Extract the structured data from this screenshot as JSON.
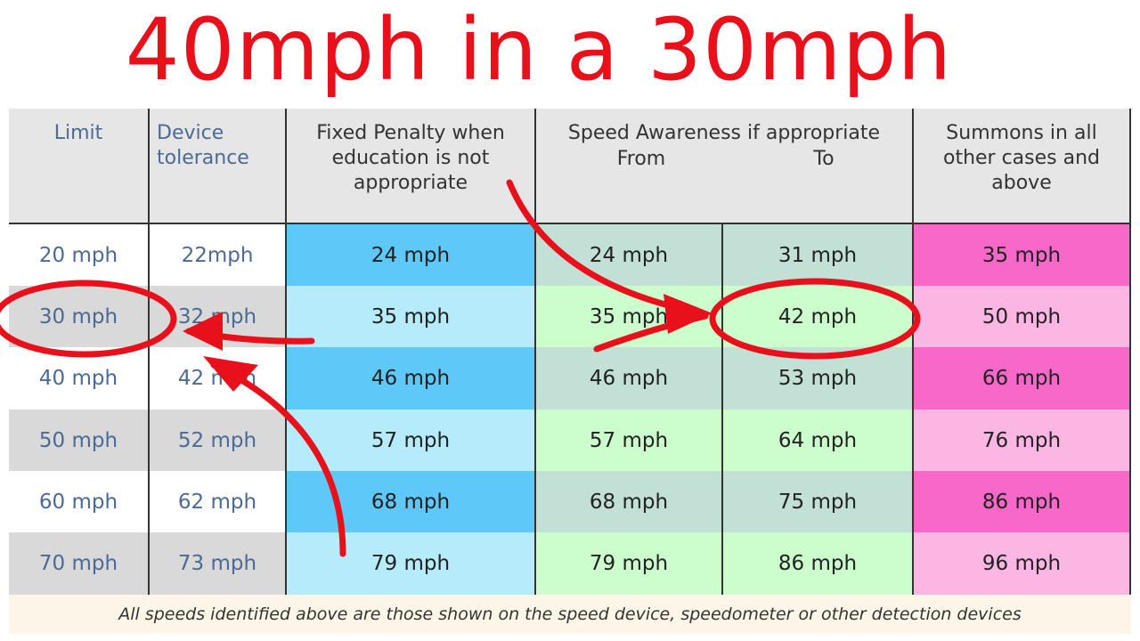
{
  "header": {
    "title": "40mph in a 30mph"
  },
  "table": {
    "columns": [
      "Limit",
      "Device tolerance",
      "Fixed Penalty when education is not appropriate",
      "Speed Awareness if appropriate",
      "Summons in all other cases and above"
    ],
    "subcolumns": [
      "From",
      "To"
    ],
    "rows": [
      [
        "20 mph",
        "22mph",
        "24 mph",
        "24 mph",
        "31 mph",
        "35 mph"
      ],
      [
        "30 mph",
        "32 mph",
        "35 mph",
        "35 mph",
        "42 mph",
        "50 mph"
      ],
      [
        "40 mph",
        "42 mph",
        "46 mph",
        "46 mph",
        "53 mph",
        "66 mph"
      ],
      [
        "50 mph",
        "52 mph",
        "57 mph",
        "57 mph",
        "64 mph",
        "76 mph"
      ],
      [
        "60 mph",
        "62 mph",
        "68 mph",
        "68 mph",
        "75 mph",
        "86 mph"
      ],
      [
        "70 mph",
        "73 mph",
        "79 mph",
        "79 mph",
        "86 mph",
        "96 mph"
      ]
    ]
  },
  "footnote": "All speeds identified above are those shown on the speed device, speedometer or other detection devices"
}
